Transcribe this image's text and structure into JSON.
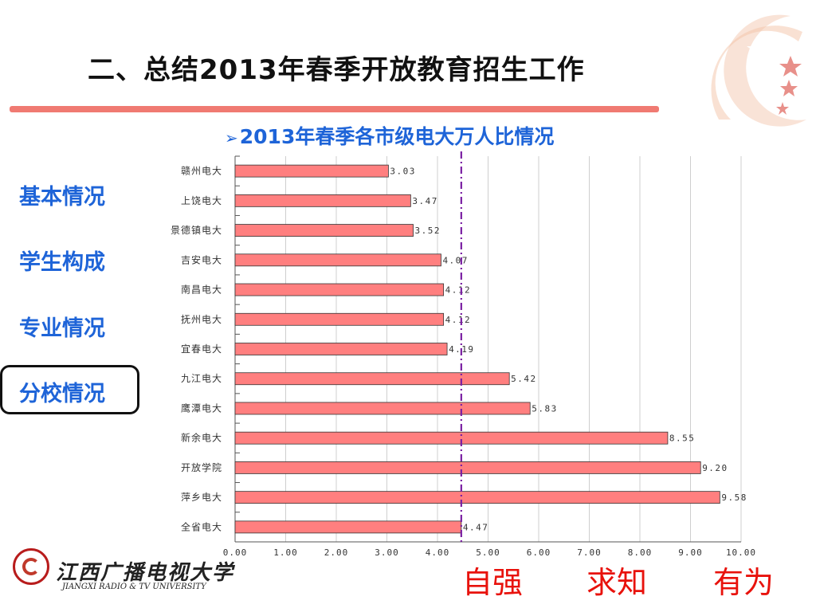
{
  "title": "二、总结2013年春季开放教育招生工作",
  "subtitle": "2013年春季各市级电大万人比情况",
  "nav": [
    "基本情况",
    "学生构成",
    "专业情况",
    "分校情况"
  ],
  "nav_active": "分校情况",
  "motto": [
    "自强",
    "求知",
    "有为"
  ],
  "logo": {
    "cn": "江西广播电视大学",
    "en": "JIANGXI RADIO & TV UNIVERSITY"
  },
  "colors": {
    "accent": "#1e64d8",
    "bar": "#ff7f7f",
    "rule": "#f07a72",
    "refline": "#7a1fa2",
    "motto": "#e8120c"
  },
  "chart_data": {
    "type": "bar",
    "orientation": "horizontal",
    "categories": [
      "赣州电大",
      "上饶电大",
      "景德镇电大",
      "吉安电大",
      "南昌电大",
      "抚州电大",
      "宜春电大",
      "九江电大",
      "鹰潭电大",
      "新余电大",
      "开放学院",
      "萍乡电大",
      "全省电大"
    ],
    "values": [
      3.03,
      3.47,
      3.52,
      4.07,
      4.12,
      4.12,
      4.19,
      5.42,
      5.83,
      8.55,
      9.2,
      9.58,
      4.47
    ],
    "value_labels": [
      "3.03",
      "3.47",
      "3.52",
      "4.07",
      "4.12",
      "4.12",
      "4.19",
      "5.42",
      "5.83",
      "8.55",
      "9.20",
      "9.58",
      "4.47"
    ],
    "xlim": [
      0,
      10
    ],
    "xticks": [
      "0.00",
      "1.00",
      "2.00",
      "3.00",
      "4.00",
      "5.00",
      "6.00",
      "7.00",
      "8.00",
      "9.00",
      "10.00"
    ],
    "reference_line": 4.47,
    "grid": true
  }
}
